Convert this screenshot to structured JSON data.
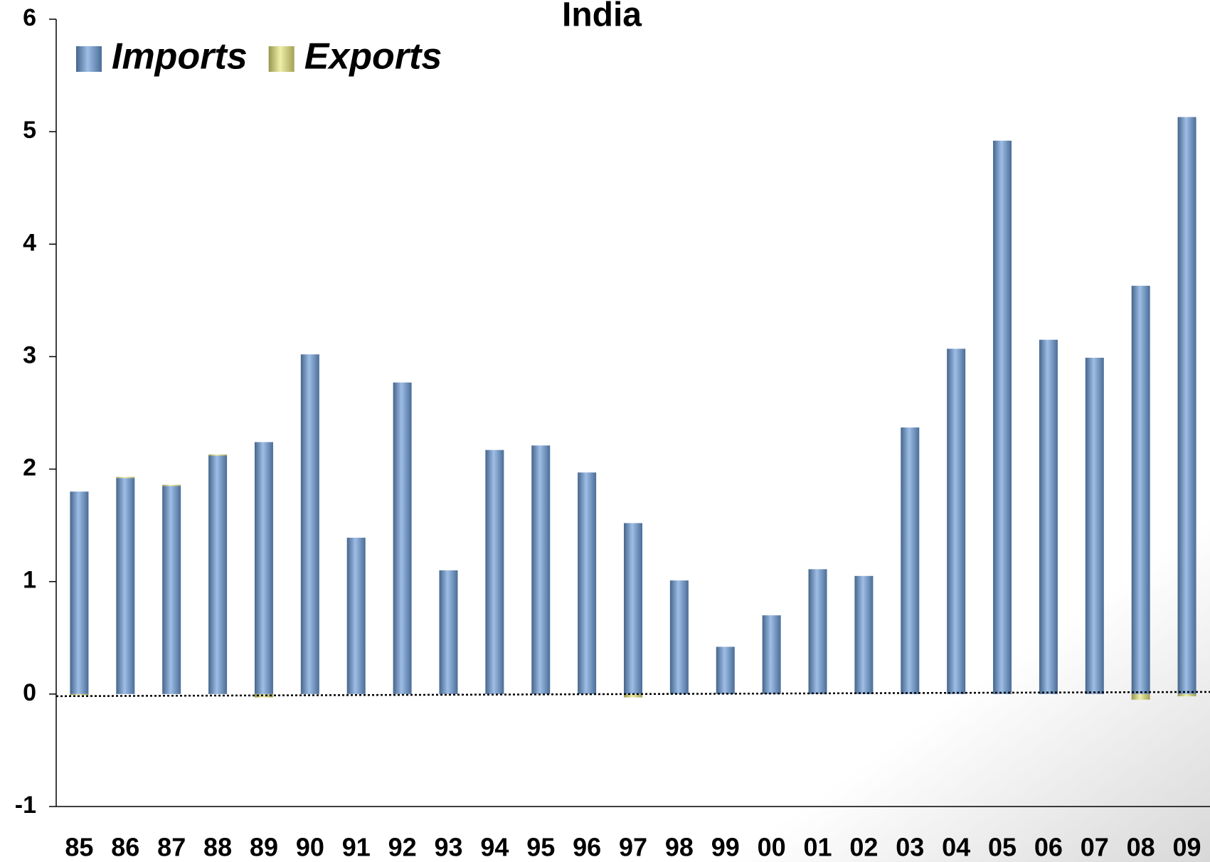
{
  "chart_data": {
    "type": "bar",
    "stacked": true,
    "title": "India",
    "categories": [
      "85",
      "86",
      "87",
      "88",
      "89",
      "90",
      "91",
      "92",
      "93",
      "94",
      "95",
      "96",
      "97",
      "98",
      "99",
      "00",
      "01",
      "02",
      "03",
      "04",
      "05",
      "06",
      "07",
      "08",
      "09"
    ],
    "series": [
      {
        "name": "Imports",
        "color": "#6a9bd8",
        "values": [
          1.8,
          1.92,
          1.85,
          2.12,
          2.24,
          3.02,
          1.39,
          2.77,
          1.1,
          2.17,
          2.21,
          1.97,
          1.52,
          1.01,
          0.42,
          0.7,
          1.11,
          1.05,
          2.37,
          3.07,
          4.92,
          3.15,
          2.99,
          3.63,
          5.13
        ]
      },
      {
        "name": "Exports",
        "color": "#e8e67a",
        "values": [
          -0.01,
          0.01,
          0.01,
          0.01,
          -0.03,
          0,
          0,
          0,
          0,
          0,
          0,
          0,
          -0.03,
          0,
          0,
          0,
          0,
          0,
          0,
          0,
          0,
          0,
          0,
          -0.05,
          -0.02
        ]
      }
    ],
    "ylim": [
      -1,
      6
    ],
    "yticks": [
      -1,
      0,
      1,
      2,
      3,
      4,
      5,
      6
    ],
    "legend": "top-left"
  }
}
